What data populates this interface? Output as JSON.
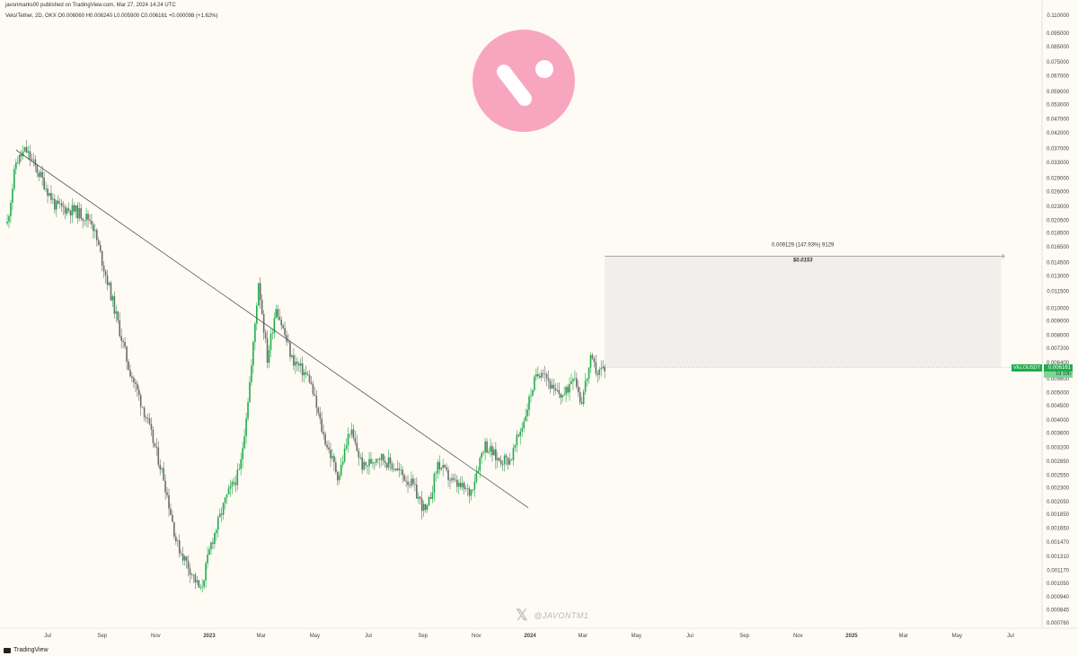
{
  "header": {
    "publisher": "javonmarks00 published on TradingView.com, Mar 27, 2024 14:24 UTC",
    "symbol_line": "Velo/Tether, 2D, OKX O0.006060 H0.006240 L0.005900 C0.006161 +0.000098 (+1.62%)"
  },
  "footer": {
    "brand": "TradingView"
  },
  "watermark": {
    "icon": "x-logo-icon",
    "handle": "@JAVONTM1"
  },
  "logo": {
    "name": "velo-logo-icon",
    "circle_color": "#f8a6c0",
    "mark_color": "#ffffff"
  },
  "price_tags": {
    "symbol": "VELOUSDT",
    "price": "0.006161",
    "time_left": "1d 10h"
  },
  "colors": {
    "up": "#22ab4c",
    "down": "#6b6b6b",
    "trendline": "#555555",
    "box_fill": "#f0efec",
    "background": "#fdfbf4"
  },
  "chart_data": {
    "type": "candlestick",
    "scale": "log",
    "interval": "2D",
    "exchange": "OKX",
    "ylim": [
      0.00076,
      0.11
    ],
    "y_ticks": [
      "0.110000",
      "0.095000",
      "0.085000",
      "0.075000",
      "0.067000",
      "0.059000",
      "0.053000",
      "0.047000",
      "0.042000",
      "0.037000",
      "0.033000",
      "0.029000",
      "0.026000",
      "0.023000",
      "0.020500",
      "0.018500",
      "0.016500",
      "0.014500",
      "0.013000",
      "0.011500",
      "0.010000",
      "0.009000",
      "0.008000",
      "0.007200",
      "0.006400",
      "0.005600",
      "0.005000",
      "0.004500",
      "0.004000",
      "0.003600",
      "0.003200",
      "0.002850",
      "0.002550",
      "0.002300",
      "0.002050",
      "0.001850",
      "0.001650",
      "0.001470",
      "0.001310",
      "0.001170",
      "0.001050",
      "0.000940",
      "0.000845",
      "0.000760"
    ],
    "x_ticks": [
      {
        "label": "Jul",
        "date": "2022-07-01"
      },
      {
        "label": "Sep",
        "date": "2022-09-01"
      },
      {
        "label": "Nov",
        "date": "2022-11-01"
      },
      {
        "label": "2023",
        "date": "2023-01-01",
        "bold": true
      },
      {
        "label": "Mar",
        "date": "2023-03-01"
      },
      {
        "label": "May",
        "date": "2023-05-01"
      },
      {
        "label": "Jul",
        "date": "2023-07-01"
      },
      {
        "label": "Sep",
        "date": "2023-09-01"
      },
      {
        "label": "Nov",
        "date": "2023-11-01"
      },
      {
        "label": "2024",
        "date": "2024-01-01",
        "bold": true
      },
      {
        "label": "Mar",
        "date": "2024-03-01"
      },
      {
        "label": "May",
        "date": "2024-05-01"
      },
      {
        "label": "Jul",
        "date": "2024-07-01"
      },
      {
        "label": "Sep",
        "date": "2024-09-01"
      },
      {
        "label": "Nov",
        "date": "2024-11-01"
      },
      {
        "label": "2025",
        "date": "2025-01-01",
        "bold": true
      },
      {
        "label": "Mar",
        "date": "2025-03-01"
      },
      {
        "label": "May",
        "date": "2025-05-01"
      },
      {
        "label": "Jul",
        "date": "2025-07-01"
      }
    ],
    "price_anchors": [
      {
        "date": "2022-05-16",
        "price": 0.02
      },
      {
        "date": "2022-05-26",
        "price": 0.033
      },
      {
        "date": "2022-06-06",
        "price": 0.0365
      },
      {
        "date": "2022-06-24",
        "price": 0.029
      },
      {
        "date": "2022-07-10",
        "price": 0.023
      },
      {
        "date": "2022-08-01",
        "price": 0.0222
      },
      {
        "date": "2022-08-20",
        "price": 0.0205
      },
      {
        "date": "2022-09-10",
        "price": 0.0115
      },
      {
        "date": "2022-10-01",
        "price": 0.0062
      },
      {
        "date": "2022-10-20",
        "price": 0.0042
      },
      {
        "date": "2022-11-10",
        "price": 0.0025
      },
      {
        "date": "2022-11-25",
        "price": 0.00145
      },
      {
        "date": "2022-12-10",
        "price": 0.00118
      },
      {
        "date": "2022-12-22",
        "price": 0.00098
      },
      {
        "date": "2023-01-03",
        "price": 0.00145
      },
      {
        "date": "2023-01-20",
        "price": 0.0021
      },
      {
        "date": "2023-02-05",
        "price": 0.00265
      },
      {
        "date": "2023-02-18",
        "price": 0.0062
      },
      {
        "date": "2023-02-26",
        "price": 0.0125
      },
      {
        "date": "2023-03-08",
        "price": 0.0066
      },
      {
        "date": "2023-03-18",
        "price": 0.0102
      },
      {
        "date": "2023-04-05",
        "price": 0.0066
      },
      {
        "date": "2023-04-25",
        "price": 0.0056
      },
      {
        "date": "2023-05-10",
        "price": 0.0036
      },
      {
        "date": "2023-05-28",
        "price": 0.0025
      },
      {
        "date": "2023-06-10",
        "price": 0.0037
      },
      {
        "date": "2023-06-25",
        "price": 0.0027
      },
      {
        "date": "2023-07-12",
        "price": 0.003
      },
      {
        "date": "2023-08-01",
        "price": 0.0027
      },
      {
        "date": "2023-08-20",
        "price": 0.00235
      },
      {
        "date": "2023-09-05",
        "price": 0.00185
      },
      {
        "date": "2023-09-18",
        "price": 0.0028
      },
      {
        "date": "2023-10-05",
        "price": 0.0024
      },
      {
        "date": "2023-10-25",
        "price": 0.0022
      },
      {
        "date": "2023-11-10",
        "price": 0.0033
      },
      {
        "date": "2023-11-25",
        "price": 0.0029
      },
      {
        "date": "2023-12-10",
        "price": 0.0029
      },
      {
        "date": "2023-12-25",
        "price": 0.004
      },
      {
        "date": "2024-01-05",
        "price": 0.0054
      },
      {
        "date": "2024-01-15",
        "price": 0.0062
      },
      {
        "date": "2024-01-28",
        "price": 0.005
      },
      {
        "date": "2024-02-10",
        "price": 0.0049
      },
      {
        "date": "2024-02-20",
        "price": 0.006
      },
      {
        "date": "2024-02-28",
        "price": 0.0046
      },
      {
        "date": "2024-03-10",
        "price": 0.0065
      },
      {
        "date": "2024-03-18",
        "price": 0.0059
      },
      {
        "date": "2024-03-26",
        "price": 0.00616
      }
    ],
    "trendline": {
      "start": {
        "date": "2022-05-26",
        "price": 0.0365
      },
      "end": {
        "date": "2023-12-30",
        "price": 0.00195
      }
    },
    "measure": {
      "start_date": "2024-03-26",
      "end_date": "2025-06-20",
      "low": 0.00616,
      "high": 0.0153,
      "label": "0.009129 (147.93%) 9129",
      "target_label": "$0.0153"
    },
    "last_price": 0.006161
  }
}
